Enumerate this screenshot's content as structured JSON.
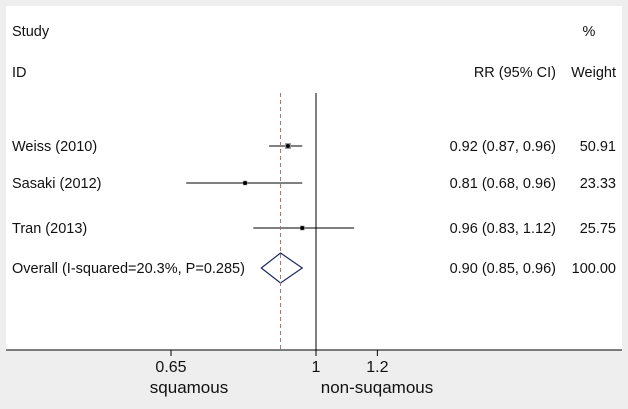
{
  "chart_data": {
    "type": "forest",
    "headers": {
      "study": "Study",
      "id": "ID",
      "effect": "RR (95% CI)",
      "weight_top": "%",
      "weight": "Weight"
    },
    "studies": [
      {
        "label": "Weiss (2010)",
        "rr": 0.92,
        "lo": 0.87,
        "hi": 0.96,
        "ci_text": "0.92 (0.87, 0.96)",
        "weight": "50.91"
      },
      {
        "label": "Sasaki (2012)",
        "rr": 0.81,
        "lo": 0.68,
        "hi": 0.96,
        "ci_text": "0.81 (0.68, 0.96)",
        "weight": "23.33"
      },
      {
        "label": "Tran (2013)",
        "rr": 0.96,
        "lo": 0.83,
        "hi": 1.12,
        "ci_text": "0.96 (0.83, 1.12)",
        "weight": "25.75"
      }
    ],
    "overall": {
      "label": "Overall (I-squared=20.3%, P=0.285)",
      "rr": 0.9,
      "lo": 0.85,
      "hi": 0.96,
      "ci_text": "0.90 (0.85, 0.96)",
      "weight": "100.00"
    },
    "x_ticks": [
      {
        "value": 0.65,
        "label": "0.65"
      },
      {
        "value": 1,
        "label": "1"
      },
      {
        "value": 1.2,
        "label": "1.2"
      }
    ],
    "x_scale": "log",
    "null_value": 1,
    "side_labels": {
      "left": "squamous",
      "right": "non-suqamous"
    }
  }
}
